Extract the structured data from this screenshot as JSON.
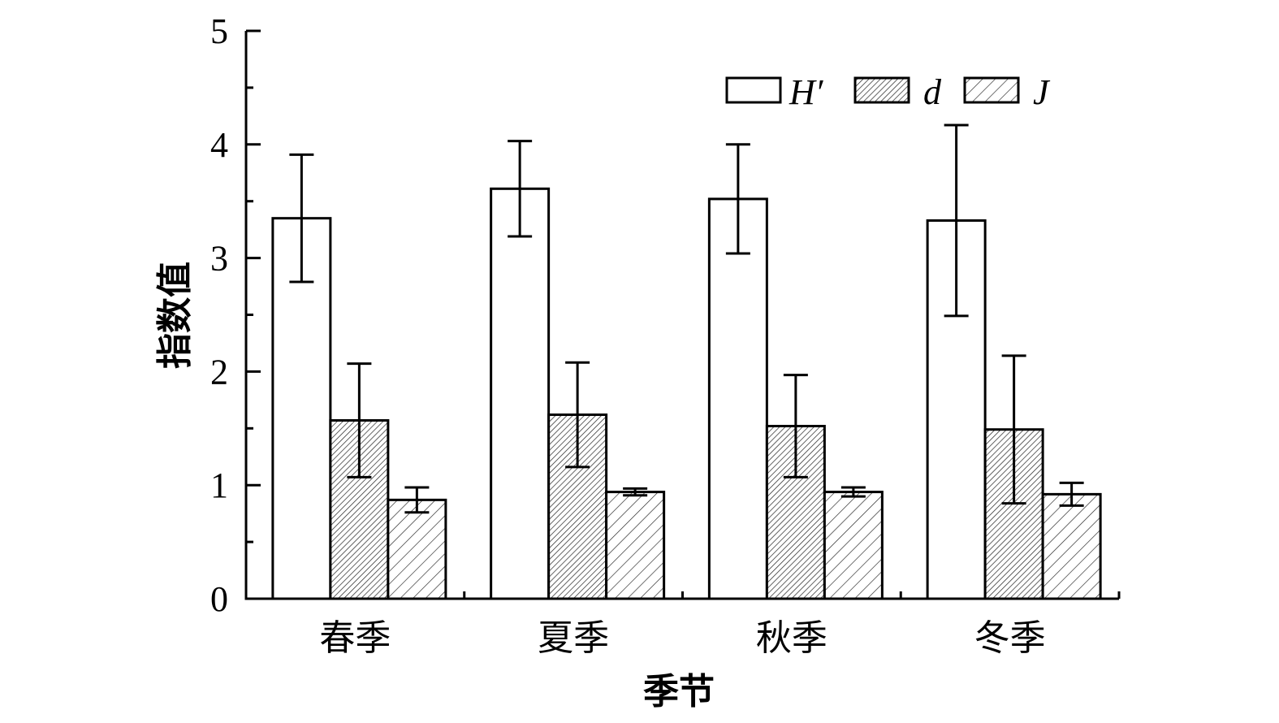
{
  "chart_data": {
    "type": "bar",
    "title": "",
    "xlabel": "季节",
    "ylabel": "指数值",
    "categories": [
      "春季",
      "夏季",
      "秋季",
      "冬季"
    ],
    "ylim": [
      0,
      5
    ],
    "yticks": [
      "0",
      "1",
      "2",
      "3",
      "4",
      "5"
    ],
    "legend_position": "top-right",
    "grid": false,
    "series": [
      {
        "name": "H′",
        "values": [
          3.35,
          3.61,
          3.52,
          3.33
        ],
        "errors": [
          0.56,
          0.42,
          0.48,
          0.84
        ],
        "fill": "#ffffff",
        "pattern": "none"
      },
      {
        "name": "d",
        "values": [
          1.57,
          1.62,
          1.52,
          1.49
        ],
        "errors": [
          0.5,
          0.46,
          0.45,
          0.65
        ],
        "fill": "#ffffff",
        "pattern": "dense-hatch"
      },
      {
        "name": "J",
        "values": [
          0.87,
          0.94,
          0.94,
          0.92
        ],
        "errors": [
          0.11,
          0.03,
          0.04,
          0.1
        ],
        "fill": "#ffffff",
        "pattern": "sparse-hatch"
      }
    ]
  }
}
